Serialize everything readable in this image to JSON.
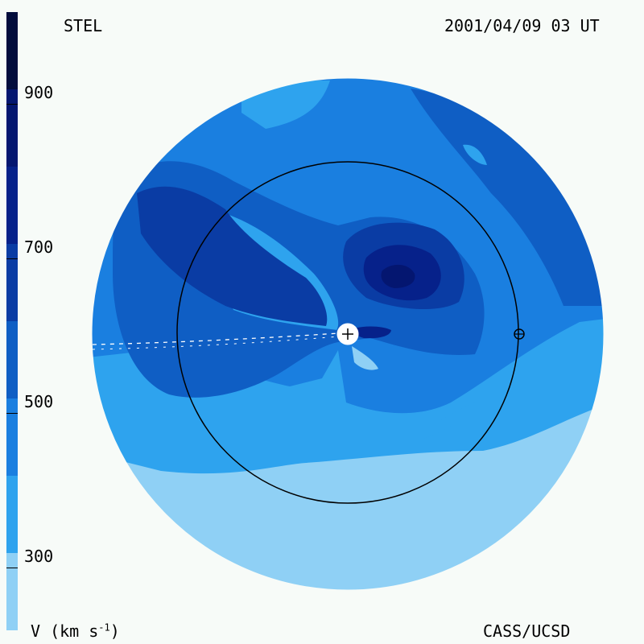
{
  "header": {
    "source": "STEL",
    "timestamp": "2001/04/09 03 UT"
  },
  "footer": {
    "credit": "CASS/UCSD"
  },
  "colorbar": {
    "quantity_label": "V (km s",
    "unit_exponent": "-1",
    "unit_close": ")",
    "min": 200,
    "max": 1000,
    "ticks": [
      "300",
      "500",
      "700",
      "900"
    ],
    "levels": [
      {
        "from": 200,
        "to": 300,
        "color": "#8fd0f5"
      },
      {
        "from": 300,
        "to": 400,
        "color": "#2ea3ee"
      },
      {
        "from": 400,
        "to": 500,
        "color": "#1a7fe0"
      },
      {
        "from": 500,
        "to": 600,
        "color": "#0f5ec4"
      },
      {
        "from": 600,
        "to": 700,
        "color": "#0a3ca4"
      },
      {
        "from": 700,
        "to": 800,
        "color": "#06218a"
      },
      {
        "from": 800,
        "to": 900,
        "color": "#041670"
      },
      {
        "from": 900,
        "to": 1000,
        "color": "#030d3d"
      }
    ]
  },
  "chart_data": {
    "type": "heatmap",
    "title": "",
    "quantity": "V (km s-1)",
    "view": "ecliptic plane, Sun at center",
    "markers": [
      "sun",
      "earth"
    ],
    "orbit_circle": "Earth orbit (1 AU)",
    "features": [
      {
        "region": "upper-center, north of Sun",
        "speed_band": [
          800,
          900
        ]
      },
      {
        "region": "ring around upper-center peak",
        "speed_band": [
          600,
          700
        ]
      },
      {
        "region": "spiral band west of Sun",
        "speed_band": [
          500,
          600
        ]
      },
      {
        "region": "outer left and right regions",
        "speed_band": [
          400,
          500
        ]
      },
      {
        "region": "lower half",
        "speed_band": [
          200,
          400
        ]
      }
    ]
  }
}
